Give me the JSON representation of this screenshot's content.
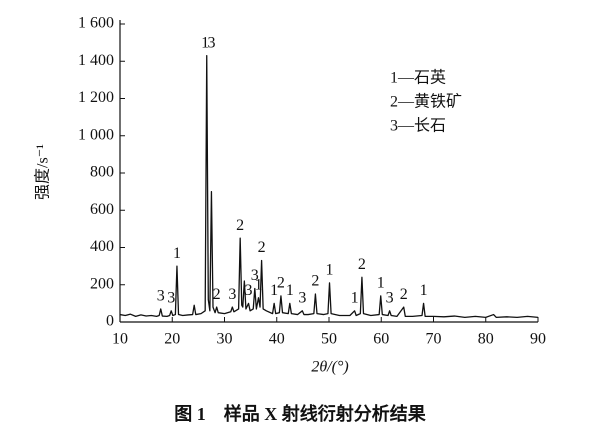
{
  "chart_data": {
    "type": "line",
    "caption": "图 1　样品 X 射线衍射分析结果",
    "x_label": "2θ/(°)",
    "y_label": "强度/s⁻¹",
    "xlim": [
      10,
      90
    ],
    "xticks": [
      10,
      20,
      30,
      40,
      50,
      60,
      70,
      80,
      90
    ],
    "ylim": [
      0,
      1600
    ],
    "yticks": [
      0,
      200,
      400,
      600,
      800,
      {
        "value": 1000,
        "label": "1 000"
      },
      {
        "value": 1200,
        "label": "1 200"
      },
      {
        "value": 1400,
        "label": "1 400"
      },
      {
        "value": 1600,
        "label": "1 600"
      }
    ],
    "legend": [
      "1—石英",
      "2—黄铁矿",
      "3—长石"
    ],
    "series": [
      {
        "color": "#111111",
        "x": [
          10,
          11,
          12,
          13,
          14,
          15,
          16,
          17,
          17.5,
          17.8,
          18.1,
          19,
          19.5,
          19.8,
          20.1,
          20.6,
          20.9,
          21.2,
          22,
          23,
          23.9,
          24.2,
          24.5,
          25.5,
          26.3,
          26.6,
          26.9,
          27.2,
          27.5,
          27.8,
          28.2,
          28.5,
          28.8,
          30,
          31.2,
          31.5,
          31.8,
          32.7,
          33.0,
          33.3,
          33.5,
          33.8,
          34.1,
          34.6,
          34.9,
          35.5,
          35.8,
          36.1,
          36.5,
          36.8,
          37.1,
          37.4,
          38,
          39.2,
          39.5,
          39.8,
          40.5,
          40.8,
          41.1,
          42.2,
          42.5,
          42.8,
          44,
          44.9,
          45.2,
          46,
          47.1,
          47.4,
          47.7,
          49,
          49.8,
          50.1,
          50.4,
          52,
          54,
          54.9,
          55.2,
          56,
          56.3,
          56.6,
          58,
          59.6,
          59.9,
          60.2,
          61.3,
          61.6,
          61.9,
          63,
          64.3,
          64.6,
          66,
          67.8,
          68.1,
          68.4,
          70,
          72,
          74,
          76,
          78,
          80,
          81.5,
          82,
          84,
          86,
          88,
          90
        ],
        "values": [
          40,
          35,
          42,
          30,
          38,
          32,
          35,
          30,
          35,
          70,
          32,
          30,
          35,
          60,
          35,
          40,
          300,
          40,
          35,
          38,
          40,
          90,
          40,
          45,
          60,
          1430,
          120,
          60,
          700,
          80,
          50,
          80,
          50,
          45,
          55,
          80,
          55,
          70,
          450,
          90,
          80,
          220,
          70,
          100,
          60,
          70,
          180,
          70,
          130,
          80,
          330,
          70,
          60,
          45,
          100,
          45,
          50,
          140,
          50,
          45,
          100,
          45,
          40,
          60,
          40,
          40,
          45,
          150,
          45,
          40,
          45,
          210,
          45,
          35,
          35,
          60,
          35,
          45,
          240,
          45,
          35,
          40,
          140,
          40,
          35,
          60,
          35,
          30,
          80,
          30,
          30,
          35,
          100,
          30,
          30,
          28,
          32,
          25,
          30,
          25,
          40,
          25,
          28,
          25,
          30,
          25
        ]
      }
    ],
    "annotations": [
      {
        "text": "3",
        "x": 17.8,
        "y": 70
      },
      {
        "text": "3",
        "x": 19.8,
        "y": 60
      },
      {
        "text": "1",
        "x": 20.9,
        "y": 300
      },
      {
        "text": "1",
        "x": 26.3,
        "y": 1430
      },
      {
        "text": "3",
        "x": 27.5,
        "y": 1430
      },
      {
        "text": "2",
        "x": 28.5,
        "y": 80
      },
      {
        "text": "3",
        "x": 31.5,
        "y": 80
      },
      {
        "text": "2",
        "x": 33.0,
        "y": 450
      },
      {
        "text": "3",
        "x": 34.6,
        "y": 100
      },
      {
        "text": "3",
        "x": 35.8,
        "y": 180
      },
      {
        "text": "1",
        "x": 36.5,
        "y": 130
      },
      {
        "text": "2",
        "x": 37.1,
        "y": 330
      },
      {
        "text": "1",
        "x": 39.5,
        "y": 100
      },
      {
        "text": "2",
        "x": 40.8,
        "y": 140
      },
      {
        "text": "1",
        "x": 42.5,
        "y": 100
      },
      {
        "text": "3",
        "x": 44.9,
        "y": 60
      },
      {
        "text": "2",
        "x": 47.4,
        "y": 150
      },
      {
        "text": "1",
        "x": 50.1,
        "y": 210
      },
      {
        "text": "1",
        "x": 54.9,
        "y": 60
      },
      {
        "text": "2",
        "x": 56.3,
        "y": 240
      },
      {
        "text": "1",
        "x": 59.9,
        "y": 140
      },
      {
        "text": "3",
        "x": 61.6,
        "y": 60
      },
      {
        "text": "2",
        "x": 64.3,
        "y": 80
      },
      {
        "text": "1",
        "x": 68.1,
        "y": 100
      }
    ]
  }
}
